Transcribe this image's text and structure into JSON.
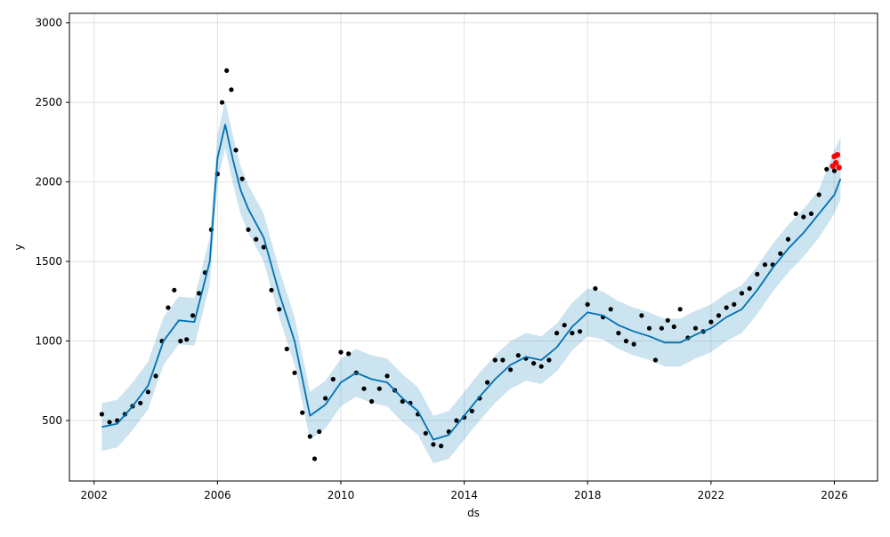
{
  "chart_data": {
    "type": "scatter",
    "title": "",
    "xlabel": "ds",
    "ylabel": "y",
    "xlim": [
      2001.2,
      2027.4
    ],
    "ylim": [
      120,
      3060
    ],
    "x_ticks": [
      2002,
      2006,
      2010,
      2014,
      2018,
      2022,
      2026
    ],
    "y_ticks": [
      500,
      1000,
      1500,
      2000,
      2500,
      3000
    ],
    "grid": true,
    "colors": {
      "observed": "#000000",
      "forecast_line": "#0072B2",
      "uncertainty_band": "#0072B2",
      "highlighted": "#ff0000"
    },
    "series": [
      {
        "kind": "observed_points",
        "x": [
          2002.25,
          2002.5,
          2002.75,
          2003.0,
          2003.25,
          2003.5,
          2003.75,
          2004.0,
          2004.2,
          2004.4,
          2004.6,
          2004.8,
          2005.0,
          2005.2,
          2005.4,
          2005.6,
          2005.8,
          2006.0,
          2006.15,
          2006.3,
          2006.45,
          2006.6,
          2006.8,
          2007.0,
          2007.25,
          2007.5,
          2007.75,
          2008.0,
          2008.25,
          2008.5,
          2008.75,
          2009.0,
          2009.15,
          2009.3,
          2009.5,
          2009.75,
          2010.0,
          2010.25,
          2010.5,
          2010.75,
          2011.0,
          2011.25,
          2011.5,
          2011.75,
          2012.0,
          2012.25,
          2012.5,
          2012.75,
          2013.0,
          2013.25,
          2013.5,
          2013.75,
          2014.0,
          2014.25,
          2014.5,
          2014.75,
          2015.0,
          2015.25,
          2015.5,
          2015.75,
          2016.0,
          2016.25,
          2016.5,
          2016.75,
          2017.0,
          2017.25,
          2017.5,
          2017.75,
          2018.0,
          2018.25,
          2018.5,
          2018.75,
          2019.0,
          2019.25,
          2019.5,
          2019.75,
          2020.0,
          2020.2,
          2020.4,
          2020.6,
          2020.8,
          2021.0,
          2021.25,
          2021.5,
          2021.75,
          2022.0,
          2022.25,
          2022.5,
          2022.75,
          2023.0,
          2023.25,
          2023.5,
          2023.75,
          2024.0,
          2024.25,
          2024.5,
          2024.75,
          2025.0,
          2025.25,
          2025.5,
          2025.75,
          2026.0
        ],
        "y": [
          540,
          490,
          500,
          540,
          590,
          610,
          680,
          780,
          1000,
          1210,
          1320,
          1000,
          1010,
          1160,
          1300,
          1430,
          1700,
          2050,
          2500,
          2700,
          2580,
          2200,
          2020,
          1700,
          1640,
          1590,
          1320,
          1200,
          950,
          800,
          550,
          400,
          260,
          430,
          640,
          760,
          930,
          920,
          800,
          700,
          620,
          700,
          780,
          690,
          620,
          610,
          540,
          420,
          350,
          340,
          430,
          500,
          520,
          560,
          640,
          740,
          880,
          880,
          820,
          910,
          890,
          860,
          840,
          880,
          1050,
          1100,
          1050,
          1060,
          1230,
          1330,
          1150,
          1200,
          1050,
          1000,
          980,
          1160,
          1080,
          880,
          1080,
          1130,
          1090,
          1200,
          1020,
          1080,
          1060,
          1120,
          1160,
          1210,
          1230,
          1300,
          1330,
          1420,
          1480,
          1480,
          1550,
          1640,
          1800,
          1780,
          1800,
          1920,
          2080,
          2070
        ]
      },
      {
        "kind": "forecast_line",
        "x": [
          2002.25,
          2002.75,
          2003.25,
          2003.75,
          2004.25,
          2004.75,
          2005.25,
          2005.75,
          2006.0,
          2006.25,
          2006.5,
          2006.75,
          2007.0,
          2007.5,
          2008.0,
          2008.5,
          2009.0,
          2009.5,
          2010.0,
          2010.5,
          2011.0,
          2011.5,
          2012.0,
          2012.5,
          2013.0,
          2013.5,
          2014.0,
          2014.5,
          2015.0,
          2015.5,
          2016.0,
          2016.5,
          2017.0,
          2017.5,
          2018.0,
          2018.5,
          2019.0,
          2019.5,
          2020.0,
          2020.5,
          2021.0,
          2021.5,
          2022.0,
          2022.5,
          2023.0,
          2023.5,
          2024.0,
          2024.5,
          2025.0,
          2025.5,
          2026.0,
          2026.2
        ],
        "y": [
          460,
          480,
          590,
          720,
          1000,
          1130,
          1120,
          1500,
          2150,
          2360,
          2140,
          1950,
          1830,
          1650,
          1300,
          1000,
          530,
          600,
          740,
          800,
          760,
          740,
          640,
          560,
          380,
          410,
          530,
          650,
          760,
          850,
          900,
          880,
          960,
          1090,
          1180,
          1160,
          1100,
          1060,
          1030,
          990,
          990,
          1040,
          1080,
          1150,
          1200,
          1320,
          1460,
          1580,
          1680,
          1800,
          1920,
          2020
        ]
      },
      {
        "kind": "uncertainty_band",
        "x": [
          2002.25,
          2002.75,
          2003.25,
          2003.75,
          2004.25,
          2004.75,
          2005.25,
          2005.75,
          2006.0,
          2006.25,
          2006.5,
          2006.75,
          2007.0,
          2007.5,
          2008.0,
          2008.5,
          2009.0,
          2009.5,
          2010.0,
          2010.5,
          2011.0,
          2011.5,
          2012.0,
          2012.5,
          2013.0,
          2013.5,
          2014.0,
          2014.5,
          2015.0,
          2015.5,
          2016.0,
          2016.5,
          2017.0,
          2017.5,
          2018.0,
          2018.5,
          2019.0,
          2019.5,
          2020.0,
          2020.5,
          2021.0,
          2021.5,
          2022.0,
          2022.5,
          2023.0,
          2023.5,
          2024.0,
          2024.5,
          2025.0,
          2025.5,
          2026.0,
          2026.2
        ],
        "y_lower": [
          310,
          330,
          440,
          570,
          850,
          980,
          970,
          1350,
          2000,
          2210,
          1990,
          1800,
          1680,
          1500,
          1150,
          850,
          380,
          450,
          590,
          650,
          610,
          590,
          490,
          410,
          230,
          260,
          380,
          500,
          610,
          700,
          750,
          730,
          810,
          940,
          1030,
          1010,
          950,
          910,
          880,
          840,
          840,
          890,
          930,
          1000,
          1050,
          1170,
          1310,
          1430,
          1530,
          1650,
          1800,
          1890
        ],
        "y_upper": [
          610,
          630,
          740,
          870,
          1150,
          1280,
          1270,
          1650,
          2300,
          2510,
          2290,
          2100,
          1980,
          1800,
          1450,
          1150,
          680,
          750,
          890,
          950,
          910,
          890,
          790,
          710,
          530,
          560,
          680,
          800,
          910,
          1000,
          1050,
          1030,
          1110,
          1240,
          1330,
          1310,
          1250,
          1210,
          1180,
          1140,
          1140,
          1190,
          1230,
          1300,
          1350,
          1470,
          1610,
          1730,
          1830,
          1950,
          2200,
          2280
        ]
      },
      {
        "kind": "highlighted_points",
        "x": [
          2025.95,
          2026.0,
          2026.05,
          2026.1,
          2026.15
        ],
        "y": [
          2100,
          2160,
          2120,
          2170,
          2090
        ]
      }
    ]
  }
}
